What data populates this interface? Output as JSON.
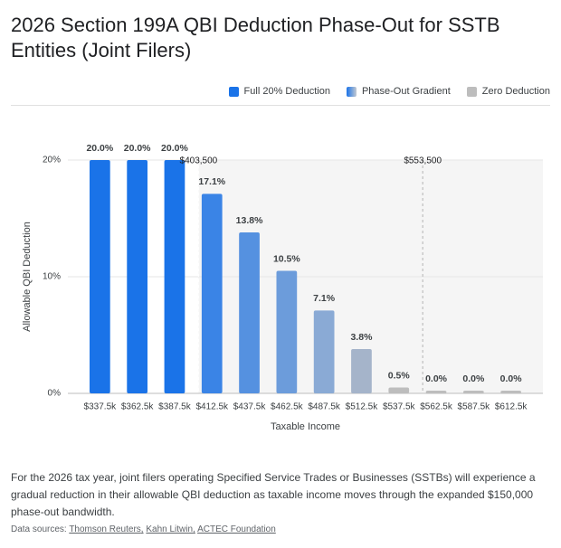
{
  "chart_data": {
    "type": "bar",
    "title": "2026 Section 199A QBI Deduction Phase-Out for SSTB Entities (Joint Filers)",
    "legend": [
      {
        "label": "Full 20% Deduction",
        "color": "#1a73e8"
      },
      {
        "label": "Phase-Out Gradient",
        "color": [
          "#1a73e8",
          "#c4c9d1"
        ]
      },
      {
        "label": "Zero Deduction",
        "color": "#bdbdbd"
      }
    ],
    "x": [
      337500,
      362500,
      387500,
      412500,
      437500,
      462500,
      487500,
      512500,
      537500,
      562500,
      587500,
      612500
    ],
    "values": [
      20,
      20,
      20,
      17.1,
      13.8,
      10.5,
      7.1,
      3.8,
      0.5,
      0,
      0,
      0
    ],
    "value_labels": [
      "20.0%",
      "20.0%",
      "20.0%",
      "17.1%",
      "13.8%",
      "10.5%",
      "7.1%",
      "3.8%",
      "0.5%",
      "0.0%",
      "0.0%",
      "0.0%"
    ],
    "colors": [
      "#1a73e8",
      "#1a73e8",
      "#1a73e8",
      "#3a84e6",
      "#5591e0",
      "#6c9cdb",
      "#8aaad5",
      "#a5b4ca",
      "#bdbdbd",
      "#bdbdbd",
      "#bdbdbd",
      "#bdbdbd"
    ],
    "xlim": [
      316100,
      633900
    ],
    "xticks": [
      {
        "value": 337500,
        "label": "$337.5k"
      },
      {
        "value": 362500,
        "label": "$362.5k"
      },
      {
        "value": 387500,
        "label": "$387.5k"
      },
      {
        "value": 412500,
        "label": "$412.5k"
      },
      {
        "value": 437500,
        "label": "$437.5k"
      },
      {
        "value": 462500,
        "label": "$462.5k"
      },
      {
        "value": 487500,
        "label": "$487.5k"
      },
      {
        "value": 512500,
        "label": "$512.5k"
      },
      {
        "value": 537500,
        "label": "$537.5k"
      },
      {
        "value": 562500,
        "label": "$562.5k"
      },
      {
        "value": 587500,
        "label": "$587.5k"
      },
      {
        "value": 612500,
        "label": "$612.5k"
      }
    ],
    "ylim": [
      0,
      20
    ],
    "yticks": [
      {
        "value": 0,
        "label": "0%"
      },
      {
        "value": 10,
        "label": "10%"
      },
      {
        "value": 20,
        "label": "20%"
      }
    ],
    "grid": true,
    "xlabel": "Taxable Income",
    "ylabel": "Allowable QBI Deduction",
    "annotations": [
      {
        "x": 403500,
        "label": "$403,500",
        "color": "#ffffff"
      },
      {
        "x": 553500,
        "label": "$553,500",
        "color": "#bdbdbd"
      }
    ],
    "description": "For the 2026 tax year, joint filers operating Specified Service Trades or Businesses (SSTBs) will experience a gradual reduction in their allowable QBI deduction as taxable income moves through the expanded $150,000 phase-out bandwidth.",
    "sources_label": "Data sources:",
    "sources": [
      "Thomson Reuters",
      "Kahn Litwin",
      "ACTEC Foundation"
    ]
  }
}
